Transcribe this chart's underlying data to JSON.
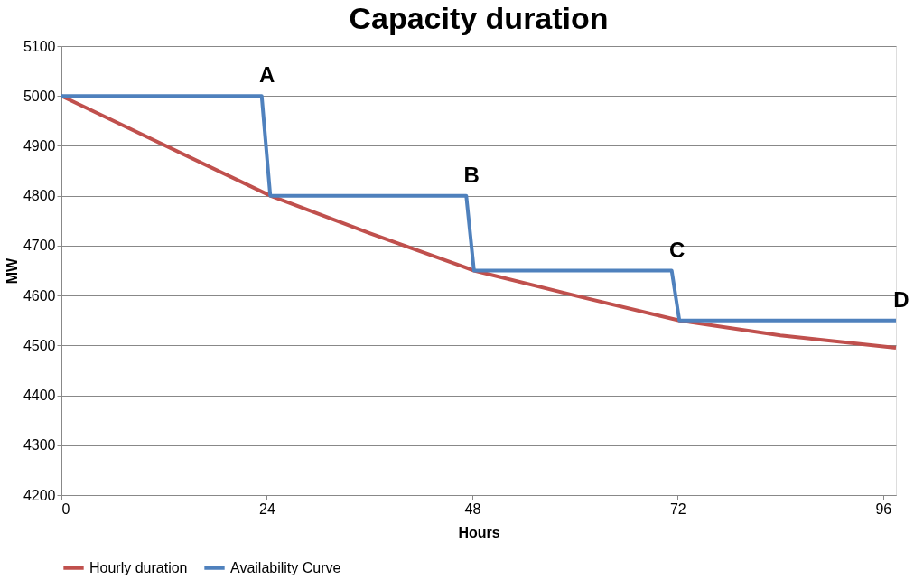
{
  "chart_data": {
    "type": "line",
    "title": "Capacity duration",
    "xlabel": "Hours",
    "ylabel": "MW",
    "xlim": [
      0,
      97.5
    ],
    "xticks": [
      0,
      24,
      48,
      72,
      96
    ],
    "ylim": [
      4200,
      5100
    ],
    "yticks": [
      4200,
      4300,
      4400,
      4500,
      4600,
      4700,
      4800,
      4900,
      5000,
      5100
    ],
    "grid": "y",
    "legend": "bottom",
    "marker": "none",
    "line_style": "solid",
    "series": [
      {
        "name": "Hourly duration",
        "color": "#c0504d",
        "x": [
          0,
          24.4,
          36,
          48.2,
          60,
          72.2,
          84,
          97.5
        ],
        "values": [
          5000,
          4800,
          4725,
          4650,
          4600,
          4550,
          4520,
          4495
        ]
      },
      {
        "name": "Availability Curve",
        "color": "#4f81bd",
        "x": [
          0,
          23.4,
          24.4,
          47.3,
          48.2,
          71.3,
          72.2,
          97.5
        ],
        "values": [
          5000,
          5000,
          4800,
          4800,
          4650,
          4650,
          4550,
          4550
        ]
      }
    ],
    "annotations": [
      {
        "text": "A",
        "x": 23.4,
        "y": 5000
      },
      {
        "text": "B",
        "x": 47.3,
        "y": 4800
      },
      {
        "text": "C",
        "x": 71.3,
        "y": 4650
      },
      {
        "text": "D",
        "x": 97.5,
        "y": 4550
      }
    ]
  }
}
